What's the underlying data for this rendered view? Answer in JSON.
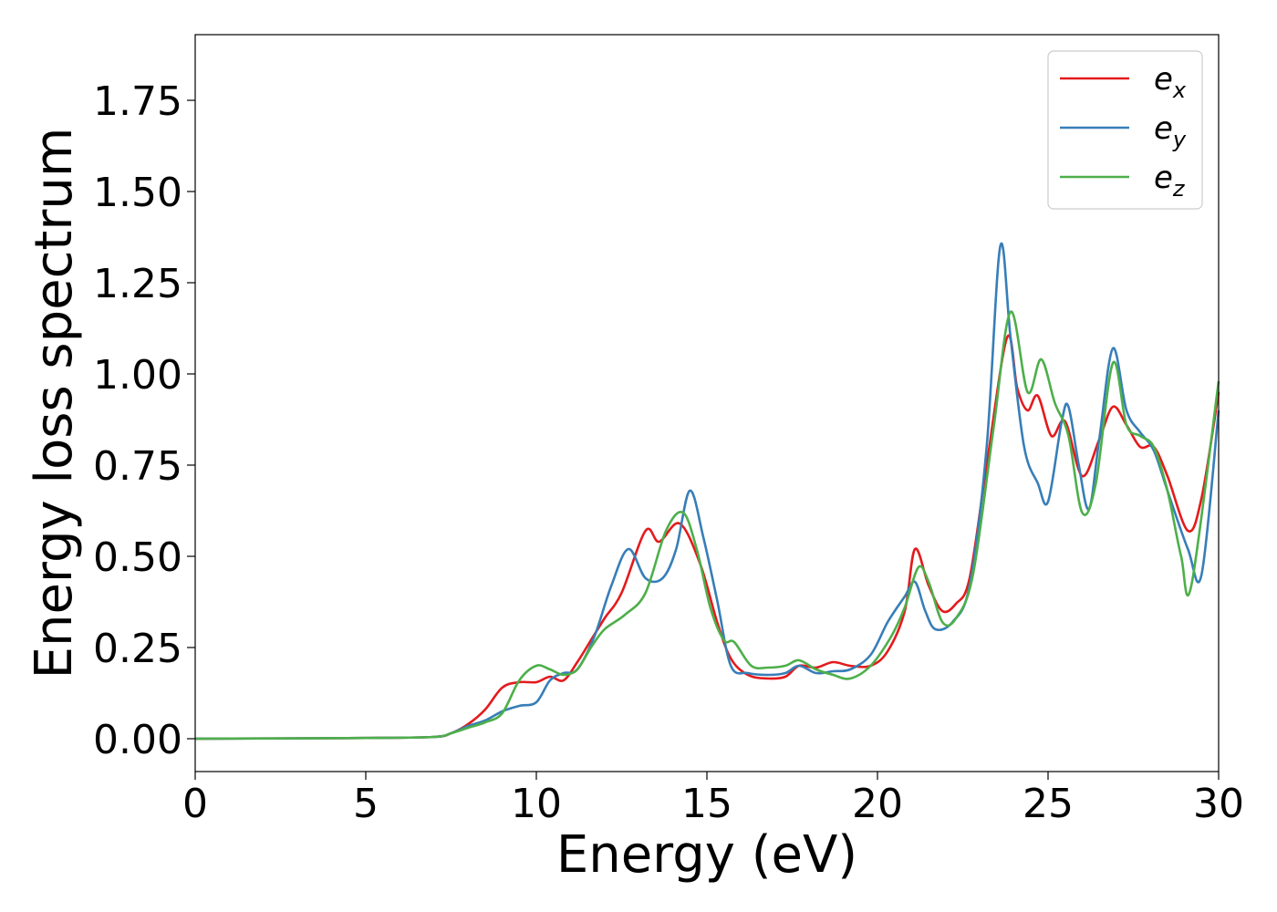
{
  "chart_data": {
    "type": "line",
    "xlabel": "Energy (eV)",
    "ylabel": "Energy loss spectrum",
    "xlim": [
      0,
      30
    ],
    "ylim": [
      -0.09,
      1.93
    ],
    "xticks": [
      "0",
      "5",
      "10",
      "15",
      "20",
      "25",
      "30"
    ],
    "yticks": [
      "0.00",
      "0.25",
      "0.50",
      "0.75",
      "1.00",
      "1.25",
      "1.50",
      "1.75"
    ],
    "grid": false,
    "legend_position": "top-right",
    "series": [
      {
        "name": "e",
        "sub": "x",
        "color": "#e41a1c",
        "x": [
          0,
          5,
          7,
          7.5,
          8,
          8.5,
          9,
          9.5,
          10,
          10.4,
          10.8,
          11.2,
          11.6,
          12,
          12.5,
          13.2,
          13.6,
          14.2,
          14.8,
          15.3,
          15.7,
          16.2,
          16.8,
          17.3,
          17.7,
          18.2,
          18.7,
          19.2,
          19.8,
          20.3,
          20.8,
          21.1,
          21.5,
          21.9,
          22.3,
          22.7,
          23.2,
          23.8,
          24.1,
          24.4,
          24.7,
          25.1,
          25.5,
          26,
          26.5,
          26.9,
          27.3,
          27.7,
          28.1,
          28.5,
          29.1,
          29.5,
          30
        ],
        "values": [
          0,
          0.002,
          0.005,
          0.015,
          0.04,
          0.08,
          0.14,
          0.155,
          0.155,
          0.17,
          0.16,
          0.21,
          0.27,
          0.33,
          0.4,
          0.57,
          0.54,
          0.59,
          0.48,
          0.32,
          0.22,
          0.175,
          0.165,
          0.17,
          0.2,
          0.195,
          0.21,
          0.2,
          0.2,
          0.24,
          0.35,
          0.52,
          0.42,
          0.35,
          0.37,
          0.44,
          0.75,
          1.1,
          0.96,
          0.9,
          0.94,
          0.83,
          0.87,
          0.72,
          0.82,
          0.91,
          0.86,
          0.8,
          0.8,
          0.72,
          0.57,
          0.66,
          0.95
        ]
      },
      {
        "name": "e",
        "sub": "y",
        "color": "#377eb8",
        "x": [
          0,
          5,
          7,
          7.5,
          8,
          8.5,
          9,
          9.5,
          10,
          10.4,
          10.8,
          11.2,
          11.7,
          12.2,
          12.7,
          13.2,
          13.7,
          14.1,
          14.5,
          14.9,
          15.3,
          15.7,
          16.2,
          16.8,
          17.3,
          17.7,
          18.2,
          18.7,
          19.2,
          19.8,
          20.3,
          20.8,
          21.1,
          21.4,
          21.7,
          22.2,
          22.7,
          23.2,
          23.6,
          23.9,
          24.3,
          24.7,
          25,
          25.4,
          25.6,
          25.9,
          26.2,
          26.5,
          26.9,
          27.3,
          27.7,
          28.1,
          28.5,
          29.1,
          29.5,
          30
        ],
        "values": [
          0,
          0.002,
          0.005,
          0.015,
          0.035,
          0.05,
          0.075,
          0.09,
          0.1,
          0.16,
          0.18,
          0.19,
          0.28,
          0.42,
          0.52,
          0.44,
          0.44,
          0.52,
          0.68,
          0.55,
          0.38,
          0.2,
          0.18,
          0.175,
          0.18,
          0.2,
          0.18,
          0.185,
          0.19,
          0.23,
          0.32,
          0.39,
          0.43,
          0.35,
          0.3,
          0.32,
          0.42,
          0.8,
          1.35,
          1.1,
          0.8,
          0.7,
          0.65,
          0.87,
          0.91,
          0.75,
          0.63,
          0.82,
          1.07,
          0.9,
          0.84,
          0.79,
          0.68,
          0.52,
          0.45,
          0.9
        ]
      },
      {
        "name": "e",
        "sub": "z",
        "color": "#4daf4a",
        "x": [
          0,
          5,
          7,
          7.5,
          8,
          8.5,
          9,
          9.5,
          10,
          10.4,
          10.8,
          11.2,
          11.6,
          12,
          12.6,
          13.2,
          13.8,
          14.3,
          14.7,
          15.1,
          15.5,
          15.8,
          16.3,
          16.8,
          17.3,
          17.7,
          18.2,
          18.7,
          19.2,
          19.8,
          20.4,
          20.8,
          21.2,
          21.5,
          21.9,
          22.3,
          22.8,
          23.4,
          23.9,
          24.4,
          24.8,
          25.2,
          25.6,
          26,
          26.4,
          26.9,
          27.3,
          27.7,
          28.1,
          28.5,
          28.9,
          29.2,
          30
        ],
        "values": [
          0,
          0.002,
          0.005,
          0.015,
          0.03,
          0.045,
          0.07,
          0.16,
          0.2,
          0.19,
          0.175,
          0.19,
          0.25,
          0.3,
          0.34,
          0.4,
          0.57,
          0.62,
          0.52,
          0.36,
          0.27,
          0.265,
          0.2,
          0.195,
          0.2,
          0.215,
          0.19,
          0.175,
          0.165,
          0.2,
          0.28,
          0.36,
          0.47,
          0.43,
          0.32,
          0.33,
          0.45,
          0.85,
          1.17,
          0.95,
          1.04,
          0.92,
          0.83,
          0.62,
          0.7,
          1.03,
          0.86,
          0.83,
          0.8,
          0.68,
          0.5,
          0.42,
          0.98
        ]
      }
    ]
  }
}
